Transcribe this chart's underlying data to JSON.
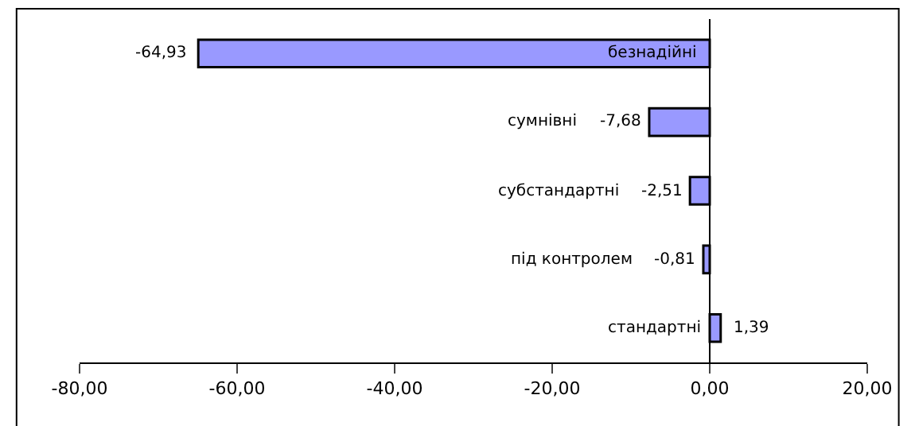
{
  "chart_data": {
    "type": "bar",
    "orientation": "horizontal",
    "categories": [
      "безнадійні",
      "сумнівні",
      "субстандартні",
      "під контролем",
      "стандартні"
    ],
    "values": [
      -64.93,
      -7.68,
      -2.51,
      -0.81,
      1.39
    ],
    "value_labels": [
      "-64,93",
      "-7,68",
      "-2,51",
      "-0,81",
      "1,39"
    ],
    "color": "#9999ff",
    "xlim": [
      -80,
      20
    ],
    "xticks": [
      {
        "value": -80,
        "label": "-80,00"
      },
      {
        "value": -60,
        "label": "-60,00"
      },
      {
        "value": -40,
        "label": "-40,00"
      },
      {
        "value": -20,
        "label": "-20,00"
      },
      {
        "value": 0,
        "label": "0,00"
      },
      {
        "value": 20,
        "label": "20,00"
      }
    ],
    "legend": false,
    "tick_labels": "x"
  }
}
